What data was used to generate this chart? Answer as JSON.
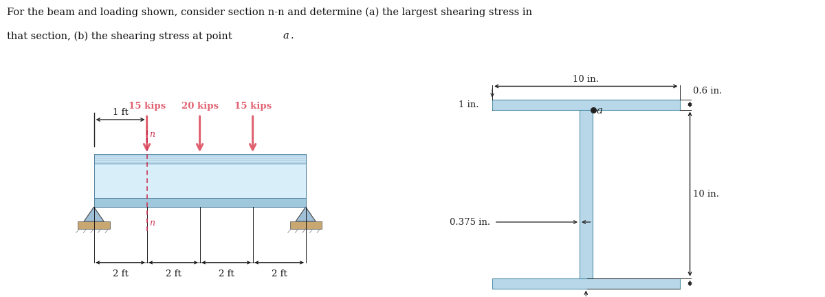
{
  "bg_color": "#ffffff",
  "beam_color": "#b8d8ea",
  "beam_highlight": "#d8eef8",
  "beam_mid": "#a0c8dc",
  "support_color": "#c8a870",
  "arrow_color": "#e06070",
  "dim_color": "#222222",
  "loads": [
    "15 kips",
    "20 kips",
    "15 kips"
  ],
  "dim_labels": [
    "2 ft",
    "2 ft",
    "2 ft",
    "2 ft"
  ],
  "title_line1": "For the beam and loading shown, consider section n-n and determine (a) the largest shearing stress in",
  "title_line2": "that section, (b) the shearing stress at point a."
}
